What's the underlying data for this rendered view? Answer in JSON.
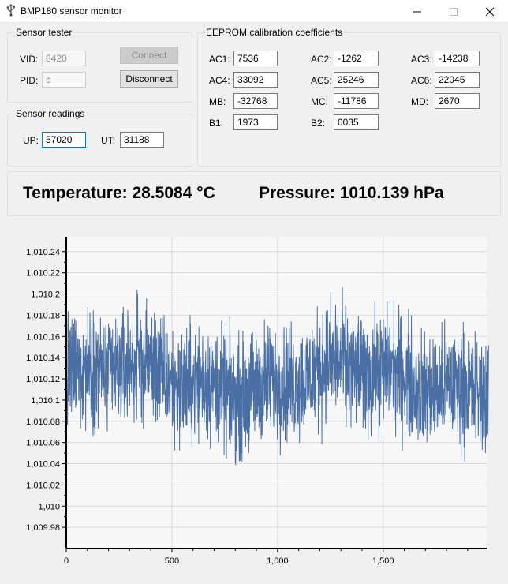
{
  "window": {
    "title": "BMP180 sensor monitor"
  },
  "sensor_tester": {
    "title": "Sensor tester",
    "vid_label": "VID:",
    "vid_value": "8420",
    "pid_label": "PID:",
    "pid_value": "c",
    "connect_label": "Connect",
    "disconnect_label": "Disconnect"
  },
  "sensor_readings": {
    "title": "Sensor readings",
    "up_label": "UP:",
    "up_value": "57020",
    "ut_label": "UT:",
    "ut_value": "31188"
  },
  "eeprom": {
    "title": "EEPROM calibration coefficients",
    "coefficients": [
      {
        "label": "AC1:",
        "value": "7536"
      },
      {
        "label": "AC2:",
        "value": "-1262"
      },
      {
        "label": "AC3:",
        "value": "-14238"
      },
      {
        "label": "AC4:",
        "value": "33092"
      },
      {
        "label": "AC5:",
        "value": "25246"
      },
      {
        "label": "AC6:",
        "value": "22045"
      },
      {
        "label": "MB:",
        "value": "-32768"
      },
      {
        "label": "MC:",
        "value": "-11786"
      },
      {
        "label": "MD:",
        "value": "2670"
      },
      {
        "label": "B1:",
        "value": "1973"
      },
      {
        "label": "B2:",
        "value": "0035"
      }
    ]
  },
  "readout": {
    "temperature": "Temperature: 28.5084 °C",
    "pressure": "Pressure: 1010.139 hPa"
  },
  "chart_data": {
    "type": "line",
    "title": "",
    "xlabel": "",
    "ylabel": "",
    "xlim": [
      0,
      1990
    ],
    "ylim": [
      1009.96,
      1010.254
    ],
    "x_ticks": [
      0,
      500,
      1000,
      1500
    ],
    "x_tick_labels": [
      "0",
      "500",
      "1,000",
      "1,500"
    ],
    "y_ticks": [
      1009.98,
      1010,
      1010.02,
      1010.04,
      1010.06,
      1010.08,
      1010.1,
      1010.12,
      1010.14,
      1010.16,
      1010.18,
      1010.2,
      1010.22,
      1010.24
    ],
    "y_tick_labels": [
      "1,009.98",
      "1,010",
      "1,010.02",
      "1,010.04",
      "1,010.06",
      "1,010.08",
      "1,010.1",
      "1,010.12",
      "1,010.14",
      "1,010.16",
      "1,010.18",
      "1,010.2",
      "1,010.22",
      "1,010.24"
    ],
    "grid": true,
    "line_color": "#4a6fa5",
    "series_summary": {
      "points": 2000,
      "x_start": 0,
      "x_step": 1,
      "baseline": 1010.12,
      "spread": 0.04
    }
  }
}
